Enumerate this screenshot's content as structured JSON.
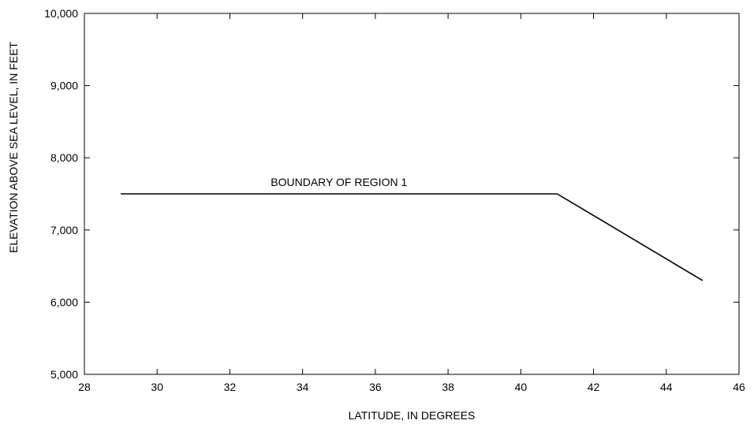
{
  "chart_data": {
    "type": "line",
    "title": "",
    "xlabel": "LATITUDE, IN DEGREES",
    "ylabel": "ELEVATION ABOVE SEA LEVEL, IN FEET",
    "xlim": [
      28,
      46
    ],
    "ylim": [
      5000,
      10000
    ],
    "x_ticks": [
      28,
      30,
      32,
      34,
      36,
      38,
      40,
      42,
      44,
      46
    ],
    "x_tick_labels": [
      "28",
      "30",
      "32",
      "34",
      "36",
      "38",
      "40",
      "42",
      "44",
      "46"
    ],
    "y_ticks": [
      5000,
      6000,
      7000,
      8000,
      9000,
      10000
    ],
    "y_tick_labels": [
      "5,000",
      "6,000",
      "7,000",
      "8,000",
      "9,000",
      "10,000"
    ],
    "grid": false,
    "series": [
      {
        "name": "BOUNDARY OF REGION 1",
        "x": [
          29,
          41,
          45
        ],
        "y": [
          7500,
          7500,
          6300
        ],
        "color": "#000000"
      }
    ],
    "annotations": [
      {
        "text": "BOUNDARY OF REGION 1",
        "x": 35,
        "y": 7500
      }
    ]
  }
}
